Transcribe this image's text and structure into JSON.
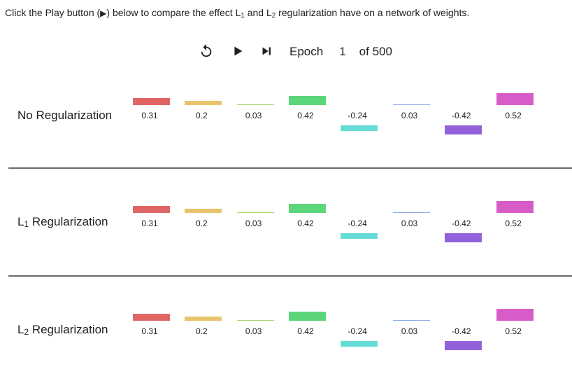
{
  "instruction": {
    "prefix": "Click the Play button (",
    "play_glyph": "▶",
    "middle": ") below to compare the effect L",
    "sub1": "1",
    "and": " and L",
    "sub2": "2",
    "suffix": " regularization have on a network of weights."
  },
  "controls": {
    "reset_icon": "reset-icon",
    "play_icon": "play-icon",
    "step_icon": "step-forward-icon",
    "epoch_label": "Epoch",
    "epoch_value": "1",
    "of_label": "of 500"
  },
  "rows": [
    {
      "label_main": "No Regularization",
      "label_pre": "",
      "label_sub": "",
      "label_post": ""
    },
    {
      "label_main": "",
      "label_pre": "L",
      "label_sub": "1",
      "label_post": " Regularization"
    },
    {
      "label_main": "",
      "label_pre": "L",
      "label_sub": "2",
      "label_post": " Regularization"
    }
  ],
  "weights": [
    {
      "value": 0.31,
      "label": "0.31",
      "color": "#e06666"
    },
    {
      "value": 0.2,
      "label": "0.2",
      "color": "#e8c46c"
    },
    {
      "value": 0.03,
      "label": "0.03",
      "color": "#a8d96c"
    },
    {
      "value": 0.42,
      "label": "0.42",
      "color": "#5cd67a"
    },
    {
      "value": -0.24,
      "label": "-0.24",
      "color": "#66dcd8"
    },
    {
      "value": 0.03,
      "label": "0.03",
      "color": "#8fb0e8"
    },
    {
      "value": -0.42,
      "label": "-0.42",
      "color": "#9461dc"
    },
    {
      "value": 0.52,
      "label": "0.52",
      "color": "#d85cc8"
    }
  ]
}
